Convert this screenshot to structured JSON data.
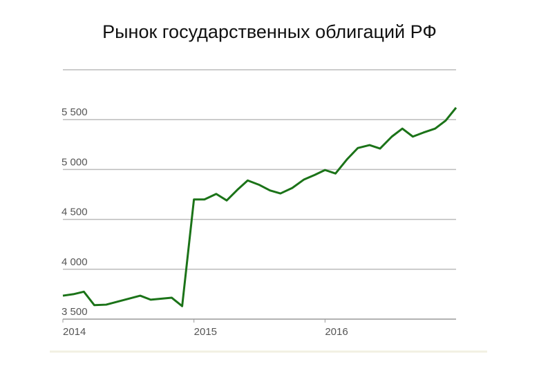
{
  "chart_data": {
    "type": "line",
    "title": "Рынок государственных облигаций РФ",
    "x": [
      2014.0,
      2014.08,
      2014.16,
      2014.24,
      2014.33,
      2014.59,
      2014.67,
      2014.83,
      2014.91,
      2015.0,
      2015.08,
      2015.17,
      2015.25,
      2015.33,
      2015.41,
      2015.5,
      2015.58,
      2015.66,
      2015.75,
      2015.84,
      2015.92,
      2016.0,
      2016.08,
      2016.17,
      2016.25,
      2016.34,
      2016.42,
      2016.51,
      2016.59,
      2016.67,
      2016.75,
      2016.84,
      2016.92,
      2017.0
    ],
    "series": [
      {
        "color": "#1b7318",
        "values": [
          3735,
          3750,
          3775,
          3640,
          3645,
          3735,
          3695,
          3715,
          3630,
          4700,
          4700,
          4755,
          4690,
          4795,
          4890,
          4845,
          4790,
          4760,
          4815,
          4900,
          4945,
          4995,
          4960,
          5105,
          5215,
          5245,
          5210,
          5330,
          5410,
          5330,
          5370,
          5410,
          5490,
          5620
        ]
      }
    ],
    "xlim": [
      2014,
      2017
    ],
    "xticks": [
      2014,
      2015,
      2016
    ],
    "ylim": [
      3500,
      6000
    ],
    "yticks": [
      {
        "value": 3500,
        "label": "3 500"
      },
      {
        "value": 4000,
        "label": "4 000"
      },
      {
        "value": 4500,
        "label": "4 500"
      },
      {
        "value": 5000,
        "label": "5 000"
      },
      {
        "value": 5500,
        "label": "5 500"
      }
    ],
    "grid": true
  }
}
